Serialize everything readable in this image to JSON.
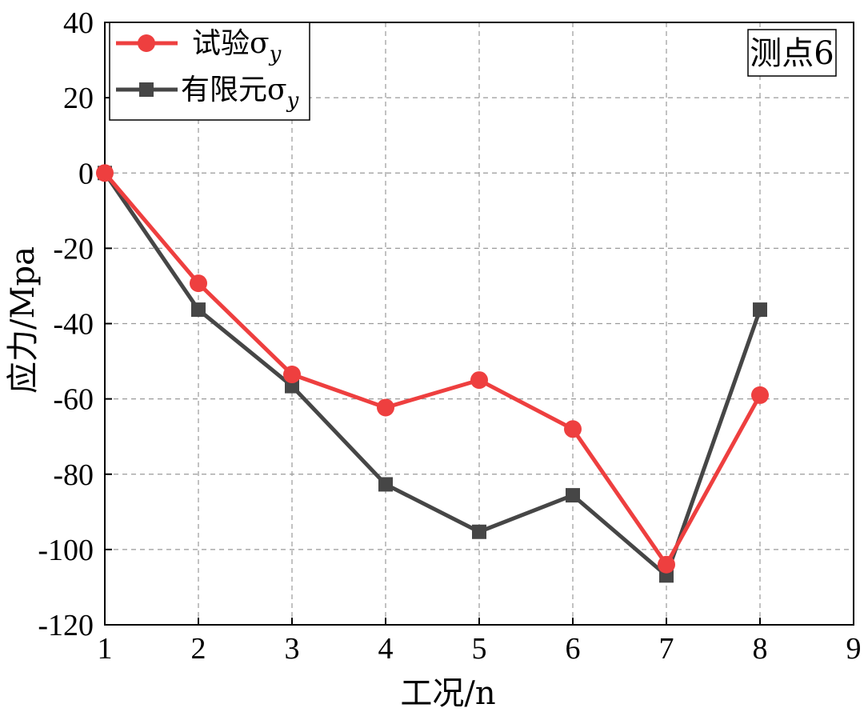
{
  "chart_data": {
    "type": "line",
    "title": "",
    "annotation": "测点6",
    "xlabel": "工况/n",
    "ylabel": "应力/Mpa",
    "xlim": [
      1,
      9
    ],
    "ylim": [
      -120,
      40
    ],
    "xticks": [
      "1",
      "2",
      "3",
      "4",
      "5",
      "6",
      "7",
      "8",
      "9"
    ],
    "yticks": [
      "40",
      "20",
      "0",
      "-20",
      "-40",
      "-60",
      "-80",
      "-100",
      "-120"
    ],
    "grid": true,
    "legend_position": "top-left",
    "x": [
      1,
      2,
      3,
      4,
      5,
      6,
      7,
      8
    ],
    "series": [
      {
        "name": "试验σ",
        "subscript": "y",
        "color": "#ee3f3f",
        "marker": "circle",
        "values": [
          0,
          -29.3,
          -53.5,
          -62.3,
          -55,
          -68,
          -104,
          -59
        ]
      },
      {
        "name": "有限元σ",
        "subscript": "y",
        "color": "#464646",
        "marker": "square",
        "values": [
          0,
          -36.3,
          -56.6,
          -82.7,
          -95.3,
          -85.6,
          -106.9,
          -36.3
        ]
      }
    ]
  }
}
